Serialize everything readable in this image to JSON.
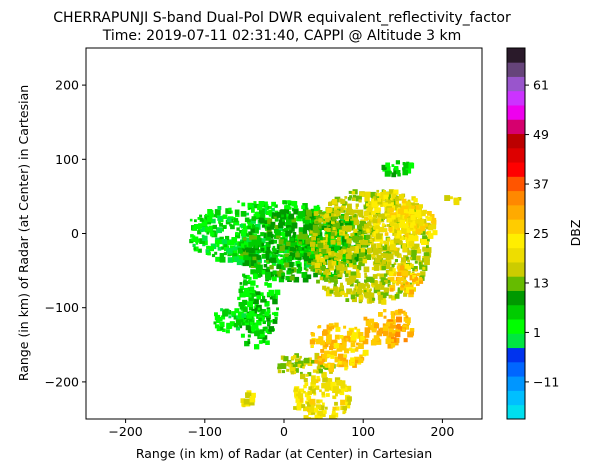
{
  "chart_data": {
    "type": "heatmap",
    "title_line1": "CHERRAPUNJI S-band Dual-Pol DWR equivalent_reflectivity_factor",
    "title_line2": "Time: 2019-07-11 02:31:40, CAPPI @ Altitude 3 km",
    "xlabel": "Range (in km) of Radar (at Center) in Cartesian",
    "ylabel": "Range (in km) of Radar (at Center) in Cartesian",
    "xlim": [
      -250,
      250
    ],
    "ylim": [
      -250,
      250
    ],
    "xticks": [
      -200,
      -100,
      0,
      100,
      200
    ],
    "yticks": [
      -200,
      -100,
      0,
      100,
      200
    ],
    "colorbar": {
      "label": "DBZ",
      "range": [
        -20,
        70
      ],
      "ticks": [
        -11,
        1,
        13,
        25,
        37,
        49,
        61
      ],
      "colors": [
        "#00dfef",
        "#00bfff",
        "#0096ff",
        "#0066ff",
        "#0033ee",
        "#00e640",
        "#00ff00",
        "#00cc00",
        "#009900",
        "#66bb00",
        "#cccc00",
        "#eedd00",
        "#ffee00",
        "#ffcc00",
        "#ffaa00",
        "#ff8800",
        "#ff5500",
        "#ff0000",
        "#dd0000",
        "#bb0000",
        "#d6006e",
        "#ee00ee",
        "#cc33ff",
        "#9955cc",
        "#66447a",
        "#2a1a2a"
      ]
    },
    "echo_regions": [
      {
        "x": [
          -120,
          90
        ],
        "y": [
          -40,
          45
        ],
        "dbz": 3
      },
      {
        "x": [
          -60,
          100
        ],
        "y": [
          -60,
          35
        ],
        "dbz": 9
      },
      {
        "x": [
          -60,
          -10
        ],
        "y": [
          -150,
          -40
        ],
        "dbz": 5
      },
      {
        "x": [
          -90,
          -50
        ],
        "y": [
          -130,
          -100
        ],
        "dbz": 3
      },
      {
        "x": [
          30,
          180
        ],
        "y": [
          -90,
          60
        ],
        "dbz": 16
      },
      {
        "x": [
          100,
          170
        ],
        "y": [
          -20,
          60
        ],
        "dbz": 21
      },
      {
        "x": [
          130,
          190
        ],
        "y": [
          -10,
          40
        ],
        "dbz": 23
      },
      {
        "x": [
          120,
          160
        ],
        "y": [
          80,
          100
        ],
        "dbz": 5
      },
      {
        "x": [
          10,
          80
        ],
        "y": [
          -250,
          -190
        ],
        "dbz": 21
      },
      {
        "x": [
          -10,
          60
        ],
        "y": [
          -190,
          -160
        ],
        "dbz": 16
      },
      {
        "x": [
          30,
          100
        ],
        "y": [
          -180,
          -120
        ],
        "dbz": 27
      },
      {
        "x": [
          100,
          160
        ],
        "y": [
          -150,
          -100
        ],
        "dbz": 29
      },
      {
        "x": [
          130,
          170
        ],
        "y": [
          -80,
          -40
        ],
        "dbz": 27
      },
      {
        "x": [
          -60,
          -40
        ],
        "y": [
          -230,
          -210
        ],
        "dbz": 19
      },
      {
        "x": [
          200,
          220
        ],
        "y": [
          45,
          55
        ],
        "dbz": 19
      }
    ]
  }
}
